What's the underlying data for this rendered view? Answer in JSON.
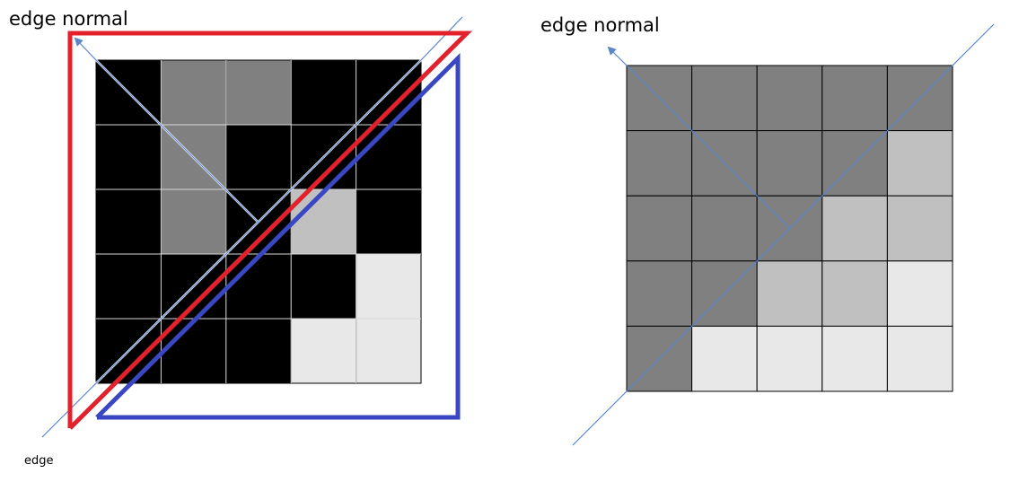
{
  "labels": {
    "left_title": "edge normal",
    "left_edge": "edge",
    "right_title": "edge normal"
  },
  "colors": {
    "black": "#000000",
    "dark_gray": "#808080",
    "mid_gray": "#c0c0c0",
    "light_gray": "#e8e8e8",
    "grid_line": "#000000",
    "edge_line": "#5b86c8",
    "red_outline": "#e3212d",
    "blue_outline": "#3a47c2"
  },
  "left_grid": [
    [
      "black",
      "dark_gray",
      "dark_gray",
      "black",
      "black"
    ],
    [
      "black",
      "dark_gray",
      "black",
      "black",
      "black"
    ],
    [
      "black",
      "dark_gray",
      "black",
      "mid_gray",
      "black"
    ],
    [
      "black",
      "black",
      "black",
      "black",
      "light_gray"
    ],
    [
      "black",
      "black",
      "black",
      "light_gray",
      "light_gray"
    ]
  ],
  "right_grid": [
    [
      "dark_gray",
      "dark_gray",
      "dark_gray",
      "dark_gray",
      "dark_gray"
    ],
    [
      "dark_gray",
      "dark_gray",
      "dark_gray",
      "dark_gray",
      "mid_gray"
    ],
    [
      "dark_gray",
      "dark_gray",
      "dark_gray",
      "mid_gray",
      "mid_gray"
    ],
    [
      "dark_gray",
      "dark_gray",
      "mid_gray",
      "mid_gray",
      "light_gray"
    ],
    [
      "dark_gray",
      "light_gray",
      "light_gray",
      "light_gray",
      "light_gray"
    ]
  ],
  "right_grid_split_cells": [
    {
      "row": 0,
      "col": 4,
      "upper": "dark_gray",
      "lower": "dark_gray"
    },
    {
      "row": 1,
      "col": 3,
      "upper": "dark_gray",
      "lower": "dark_gray"
    },
    {
      "row": 2,
      "col": 2,
      "upper": "dark_gray",
      "lower": "dark_gray"
    },
    {
      "row": 3,
      "col": 1,
      "upper": "dark_gray",
      "lower": "dark_gray"
    },
    {
      "row": 4,
      "col": 0,
      "upper": "dark_gray",
      "lower": "dark_gray"
    }
  ]
}
